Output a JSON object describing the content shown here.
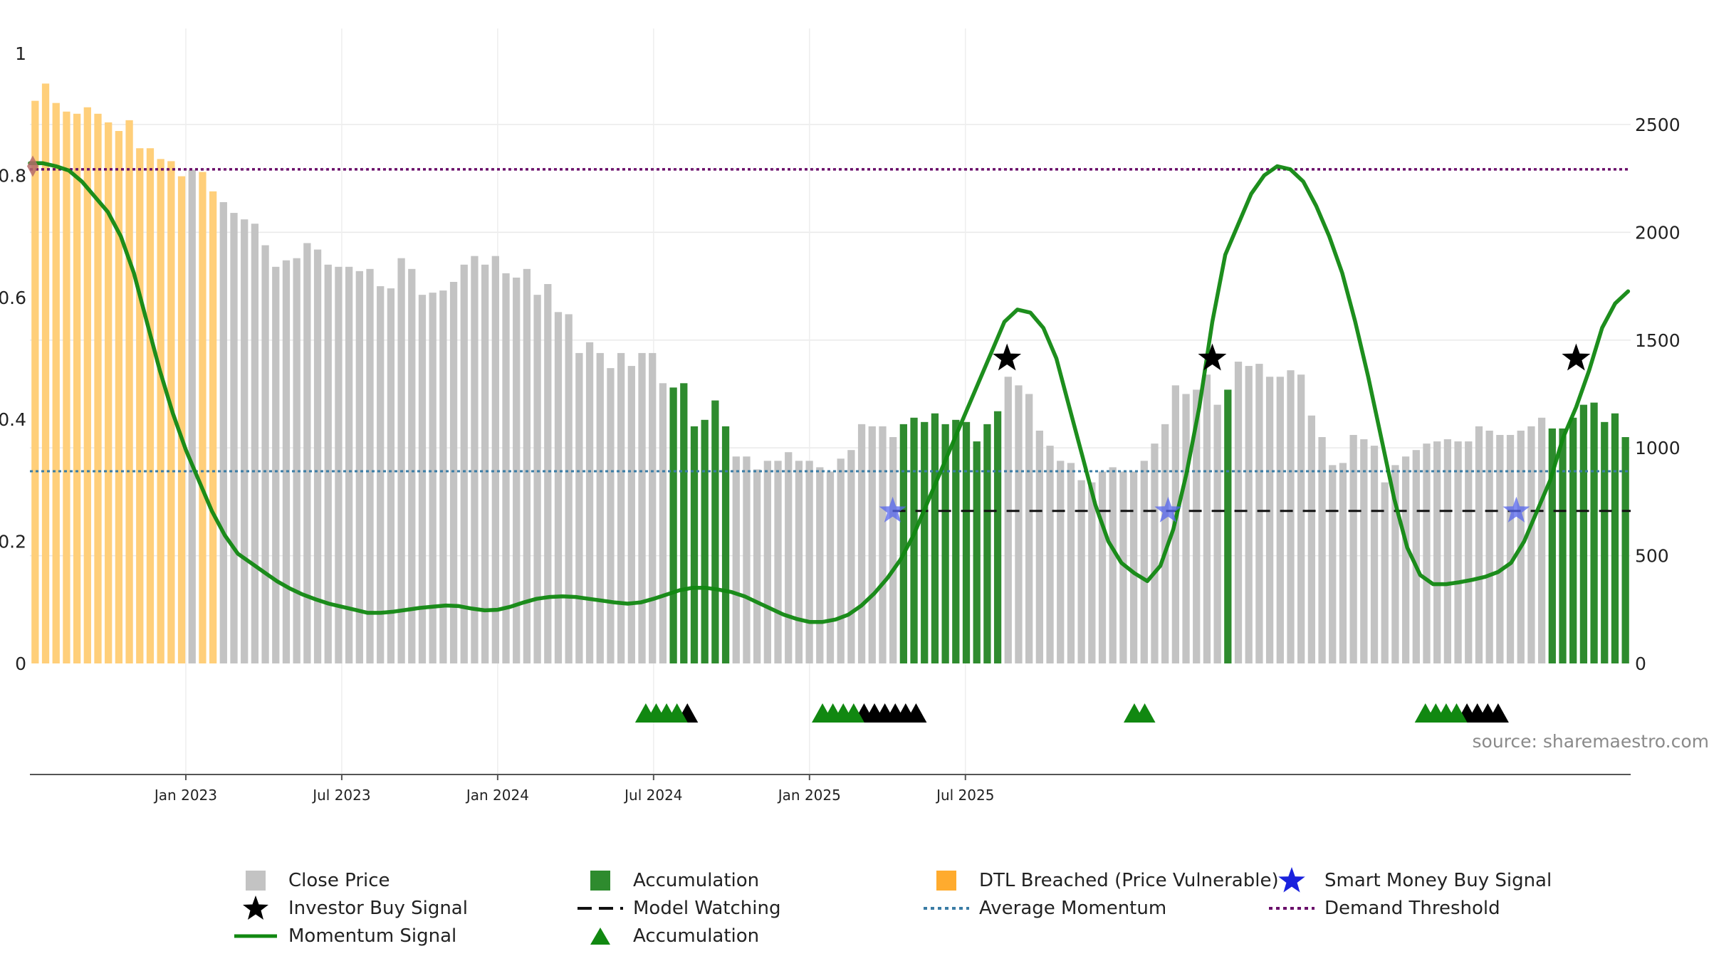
{
  "source_label": "source: sharemaestro.com",
  "colors": {
    "close_price": "#c3c3c3",
    "accumulation": "#2e8b2e",
    "dtl": "#ffcf7a",
    "momentum": "#118811",
    "avg_momentum": "#3a7ca5",
    "demand": "#6a0f6a",
    "smart_money": "#3344dd",
    "investor": "#000000"
  },
  "legend": {
    "close_price": "Close Price",
    "accumulation": "Accumulation",
    "dtl_breached": "DTL Breached (Price Vulnerable)",
    "smart_money": "Smart Money Buy Signal",
    "investor_buy": "Investor Buy Signal",
    "model_watching": "Model Watching",
    "avg_momentum": "Average Momentum",
    "demand_threshold": "Demand Threshold",
    "momentum_signal": "Momentum Signal",
    "accumulation_markers": "Accumulation"
  },
  "chart_data": {
    "type": "bar",
    "x_ticks": [
      "Jan 2023",
      "Jul 2023",
      "Jan 2024",
      "Jul 2024",
      "Jan 2025",
      "Jul 2025"
    ],
    "y_left": {
      "ticks": [
        "0",
        "0.2",
        "0.4",
        "0.6",
        "0.8",
        "1"
      ],
      "range": [
        0,
        1
      ]
    },
    "y_right": {
      "ticks": [
        "0",
        "500",
        "1000",
        "1500",
        "2000",
        "2500"
      ],
      "range": [
        0,
        2830
      ]
    },
    "close_prices": [
      2610,
      2690,
      2600,
      2560,
      2550,
      2580,
      2550,
      2510,
      2470,
      2520,
      2390,
      2390,
      2340,
      2330,
      2260,
      2290,
      2280,
      2190,
      2140,
      2090,
      2060,
      2040,
      1940,
      1840,
      1870,
      1880,
      1950,
      1920,
      1850,
      1840,
      1840,
      1820,
      1830,
      1750,
      1740,
      1880,
      1830,
      1710,
      1720,
      1730,
      1770,
      1850,
      1890,
      1850,
      1890,
      1810,
      1790,
      1830,
      1710,
      1760,
      1630,
      1620,
      1440,
      1490,
      1440,
      1370,
      1440,
      1380,
      1440,
      1440,
      1300,
      1280,
      1300,
      1100,
      1130,
      1220,
      1100,
      960,
      960,
      900,
      940,
      940,
      980,
      940,
      940,
      910,
      890,
      950,
      990,
      1110,
      1100,
      1100,
      1050,
      1110,
      1140,
      1120,
      1160,
      1110,
      1130,
      1120,
      1030,
      1110,
      1170,
      1330,
      1290,
      1250,
      1080,
      1010,
      940,
      930,
      850,
      840,
      890,
      910,
      890,
      890,
      940,
      1020,
      1110,
      1290,
      1250,
      1270,
      1340,
      1200,
      1270,
      1400,
      1380,
      1390,
      1330,
      1330,
      1360,
      1340,
      1150,
      1050,
      920,
      930,
      1060,
      1040,
      1010,
      840,
      920,
      960,
      990,
      1020,
      1030,
      1040,
      1030,
      1030,
      1100,
      1080,
      1060,
      1060,
      1080,
      1100,
      1140,
      1090,
      1090,
      1140,
      1200,
      1210,
      1120,
      1160,
      1050
    ],
    "bar_types": "dddddddddddddddoddoooooooooooooooooooooooooooooooooooooooooooaaaaaaooooooooooooooooaaaaaaaaaaoooooooooooooooooooooaooooooooooooooooooooooooooooooaaaaaaaaaoooooooo",
    "momentum_signal": [
      [
        0,
        0.82
      ],
      [
        0.5,
        0.82
      ],
      [
        1,
        0.815
      ],
      [
        1.5,
        0.808
      ],
      [
        2,
        0.79
      ],
      [
        2.5,
        0.765
      ],
      [
        3,
        0.74
      ],
      [
        3.5,
        0.7
      ],
      [
        4,
        0.64
      ],
      [
        4.5,
        0.56
      ],
      [
        5,
        0.48
      ],
      [
        5.5,
        0.41
      ],
      [
        6,
        0.35
      ],
      [
        6.5,
        0.3
      ],
      [
        7,
        0.25
      ],
      [
        7.5,
        0.21
      ],
      [
        8,
        0.18
      ],
      [
        8.5,
        0.165
      ],
      [
        9,
        0.15
      ],
      [
        9.5,
        0.135
      ],
      [
        10,
        0.123
      ],
      [
        10.5,
        0.113
      ],
      [
        11,
        0.105
      ],
      [
        11.5,
        0.098
      ],
      [
        12,
        0.093
      ],
      [
        12.5,
        0.088
      ],
      [
        13,
        0.083
      ],
      [
        13.5,
        0.083
      ],
      [
        14,
        0.085
      ],
      [
        14.5,
        0.088
      ],
      [
        15,
        0.091
      ],
      [
        15.5,
        0.093
      ],
      [
        16,
        0.095
      ],
      [
        16.5,
        0.094
      ],
      [
        17,
        0.09
      ],
      [
        17.5,
        0.087
      ],
      [
        18,
        0.088
      ],
      [
        18.5,
        0.093
      ],
      [
        19,
        0.1
      ],
      [
        19.5,
        0.106
      ],
      [
        20,
        0.109
      ],
      [
        20.5,
        0.11
      ],
      [
        21,
        0.109
      ],
      [
        21.5,
        0.106
      ],
      [
        22,
        0.103
      ],
      [
        22.5,
        0.1
      ],
      [
        23,
        0.098
      ],
      [
        23.5,
        0.1
      ],
      [
        24,
        0.106
      ],
      [
        24.5,
        0.113
      ],
      [
        25,
        0.12
      ],
      [
        25.5,
        0.124
      ],
      [
        26,
        0.124
      ],
      [
        26.5,
        0.121
      ],
      [
        27,
        0.117
      ],
      [
        27.5,
        0.11
      ],
      [
        28,
        0.1
      ],
      [
        28.5,
        0.09
      ],
      [
        29,
        0.08
      ],
      [
        29.5,
        0.073
      ],
      [
        30,
        0.068
      ],
      [
        30.5,
        0.068
      ],
      [
        31,
        0.072
      ],
      [
        31.5,
        0.08
      ],
      [
        32,
        0.095
      ],
      [
        32.5,
        0.115
      ],
      [
        33,
        0.14
      ],
      [
        33.5,
        0.17
      ],
      [
        34,
        0.21
      ],
      [
        34.5,
        0.26
      ],
      [
        35,
        0.31
      ],
      [
        35.5,
        0.36
      ],
      [
        36,
        0.41
      ],
      [
        36.5,
        0.46
      ],
      [
        37,
        0.51
      ],
      [
        37.5,
        0.56
      ],
      [
        38,
        0.58
      ],
      [
        38.5,
        0.575
      ],
      [
        39,
        0.55
      ],
      [
        39.5,
        0.5
      ],
      [
        40,
        0.42
      ],
      [
        40.5,
        0.34
      ],
      [
        41,
        0.26
      ],
      [
        41.5,
        0.2
      ],
      [
        42,
        0.165
      ],
      [
        42.5,
        0.148
      ],
      [
        43,
        0.135
      ],
      [
        43.5,
        0.16
      ],
      [
        44,
        0.22
      ],
      [
        44.5,
        0.31
      ],
      [
        45,
        0.42
      ],
      [
        45.5,
        0.56
      ],
      [
        46,
        0.67
      ],
      [
        46.5,
        0.72
      ],
      [
        47,
        0.77
      ],
      [
        47.5,
        0.8
      ],
      [
        48,
        0.815
      ],
      [
        48.5,
        0.81
      ],
      [
        49,
        0.79
      ],
      [
        49.5,
        0.75
      ],
      [
        50,
        0.7
      ],
      [
        50.5,
        0.64
      ],
      [
        51,
        0.56
      ],
      [
        51.5,
        0.47
      ],
      [
        52,
        0.37
      ],
      [
        52.5,
        0.27
      ],
      [
        53,
        0.19
      ],
      [
        53.5,
        0.145
      ],
      [
        54,
        0.13
      ],
      [
        54.5,
        0.13
      ],
      [
        55,
        0.133
      ],
      [
        55.5,
        0.137
      ],
      [
        56,
        0.142
      ],
      [
        56.5,
        0.15
      ],
      [
        57,
        0.165
      ],
      [
        57.5,
        0.2
      ],
      [
        58,
        0.25
      ],
      [
        58.5,
        0.3
      ],
      [
        59,
        0.37
      ],
      [
        59.5,
        0.42
      ],
      [
        60,
        0.48
      ],
      [
        60.5,
        0.55
      ],
      [
        61,
        0.59
      ],
      [
        61.5,
        0.61
      ]
    ],
    "average_momentum": 0.315,
    "demand_threshold": 0.81,
    "model_watching": {
      "from": 33.2,
      "to": 61.5,
      "y": 0.25
    },
    "smart_money_signals": [
      [
        33.2,
        0.25
      ],
      [
        43.8,
        0.25
      ],
      [
        57.2,
        0.25
      ]
    ],
    "investor_buy_signals": [
      [
        37.6,
        0.5
      ],
      [
        45.5,
        0.5
      ],
      [
        59.5,
        0.5
      ]
    ],
    "dtl_marker": [
      0,
      0.815
    ],
    "accumulation_markers": {
      "green": [
        23.7,
        24.1,
        24.5,
        24.9,
        30.5,
        30.9,
        31.3,
        31.7,
        42.5,
        42.9,
        53.7,
        54.1,
        54.5,
        54.9
      ],
      "black": [
        25.3,
        32.1,
        32.5,
        32.9,
        33.3,
        33.7,
        34.1,
        55.3,
        55.7,
        56.1,
        56.5
      ]
    }
  }
}
